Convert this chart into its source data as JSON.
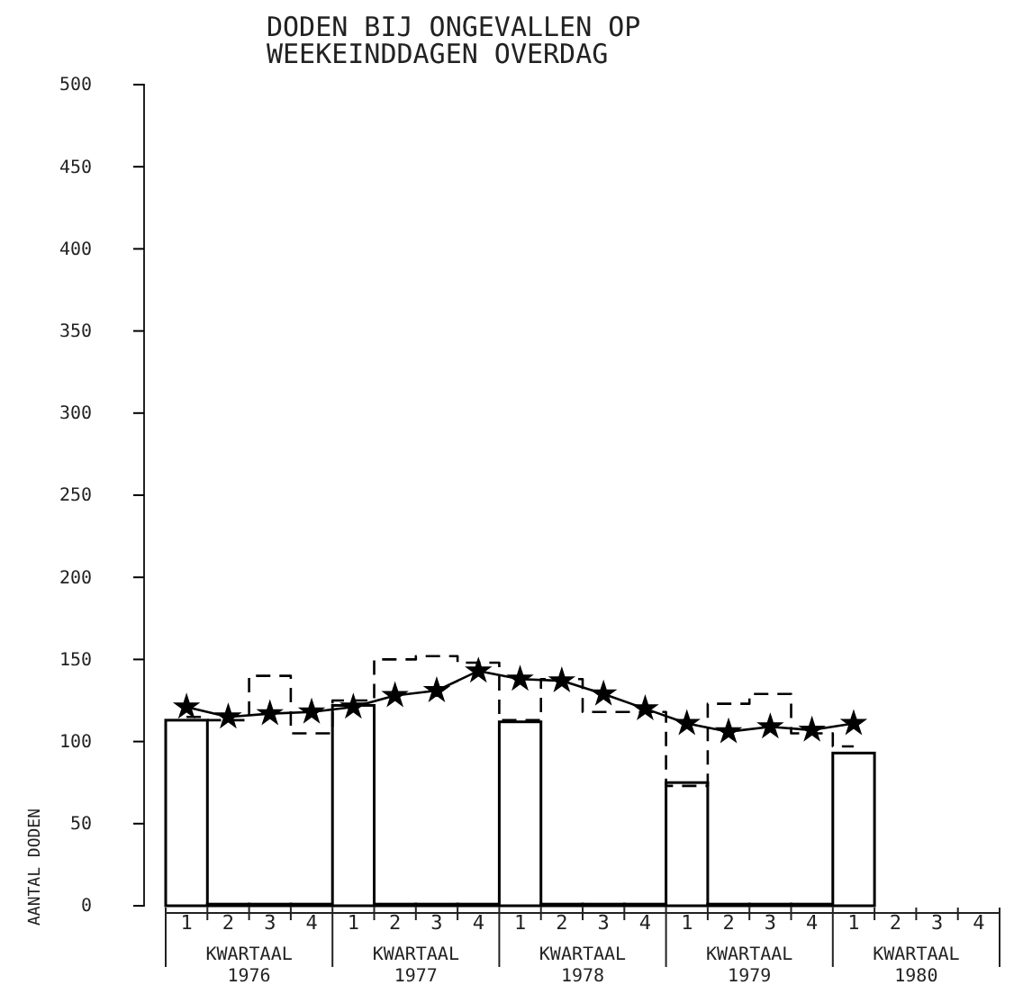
{
  "chart_data": {
    "type": "bar",
    "title": "DODEN BIJ ONGEVALLEN OP\nWEEKEINDDAGEN OVERDAG",
    "ylabel": "AANTAL DODEN",
    "categories": [
      "1",
      "2",
      "3",
      "4",
      "1",
      "2",
      "3",
      "4",
      "1",
      "2",
      "3",
      "4",
      "1",
      "2",
      "3",
      "4",
      "1",
      "2",
      "3",
      "4"
    ],
    "annotations": [
      "KWARTAAL\n1976",
      "KWARTAAL\n1977",
      "KWARTAAL\n1978",
      "KWARTAAL\n1979",
      "KWARTAAL\n1980"
    ],
    "ylim": [
      0,
      500
    ],
    "yticks": [
      0,
      50,
      100,
      150,
      200,
      250,
      300,
      350,
      400,
      450,
      500
    ],
    "grid": false,
    "series": [
      {
        "color": "#000000",
        "values": [
          113,
          1,
          1,
          1,
          122,
          1,
          1,
          1,
          112,
          1,
          1,
          1,
          75,
          1,
          1,
          1,
          93,
          null,
          null,
          null
        ]
      },
      {
        "type": "step",
        "color": "#000000",
        "line_style": "dashed",
        "values": [
          115,
          113,
          140,
          105,
          125,
          150,
          152,
          148,
          113,
          138,
          118,
          118,
          73,
          123,
          129,
          105,
          97,
          null,
          null,
          null
        ]
      },
      {
        "type": "line",
        "color": "#000000",
        "marker": "star",
        "values": [
          121,
          115,
          117,
          118,
          121,
          128,
          131,
          143,
          138,
          137,
          129,
          120,
          111,
          106,
          109,
          107,
          111,
          null,
          null,
          null
        ]
      }
    ]
  }
}
